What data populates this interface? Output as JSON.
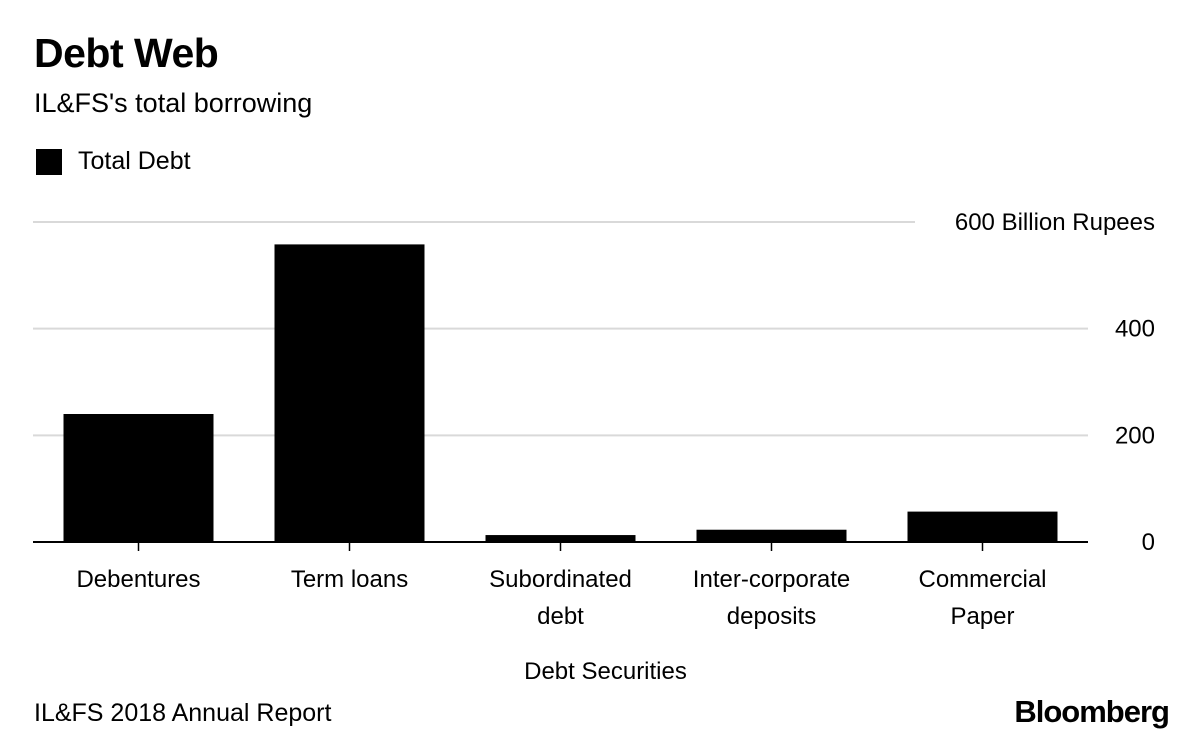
{
  "header": {
    "title": "Debt Web",
    "subtitle": "IL&FS's total borrowing"
  },
  "legend": {
    "label": "Total Debt",
    "color": "#000000"
  },
  "footer": {
    "source": "IL&FS 2018 Annual Report",
    "logo": "Bloomberg"
  },
  "chart_data": {
    "type": "bar",
    "categories": [
      [
        "Debentures"
      ],
      [
        "Term loans"
      ],
      [
        "Subordinated",
        "debt"
      ],
      [
        "Inter-corporate",
        "deposits"
      ],
      [
        "Commercial",
        "Paper"
      ]
    ],
    "series": [
      {
        "name": "Total Debt",
        "values": [
          240,
          558,
          13,
          23,
          57
        ],
        "color": "#000000"
      }
    ],
    "xlabel": "Debt Securities",
    "ylabel": "",
    "ylim": [
      0,
      600
    ],
    "yticks": [
      0,
      200,
      400,
      600
    ],
    "ytick_labels": [
      "0",
      "200",
      "400",
      "600 Billion Rupees"
    ],
    "y_axis_side": "right",
    "grid": true,
    "gridline_color": "#d9d9d9",
    "legend_position": "top-left"
  }
}
